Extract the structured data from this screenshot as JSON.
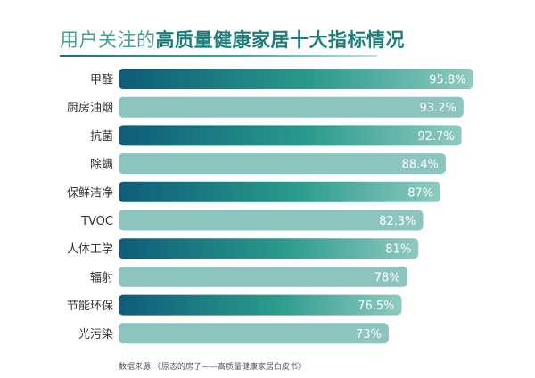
{
  "header": {
    "title_light": "用户关注的",
    "title_bold": "高质量健康家居十大指标情况"
  },
  "footer": {
    "source": "数据来源:《原态的房子——高质量健康家居白皮书》"
  },
  "colors": {
    "title_light": "#4a9e96",
    "title_bold": "#1d7d78",
    "bar_dark_start": "#0d5c79",
    "bar_dark_mid": "#2a9b8c",
    "bar_dark_end": "#8fcac0",
    "bar_light": "#8cc5c0",
    "value_text": "#ffffff",
    "category_text": "#333333"
  },
  "chart_data": {
    "type": "bar",
    "orientation": "horizontal",
    "title": "用户关注的高质量健康家居十大指标情况",
    "categories": [
      "甲醛",
      "厨房油烟",
      "抗菌",
      "除螨",
      "保鲜洁净",
      "TVOC",
      "人体工学",
      "辐射",
      "节能环保",
      "光污染"
    ],
    "values": [
      95.8,
      93.2,
      92.7,
      88.4,
      87,
      82.3,
      81,
      78,
      76.5,
      73
    ],
    "value_labels": [
      "95.8%",
      "93.2%",
      "92.7%",
      "88.4%",
      "87%",
      "82.3%",
      "81%",
      "78%",
      "76.5%",
      "73%"
    ],
    "unit": "%",
    "xlim": [
      0,
      100
    ],
    "grid": false,
    "legend": "none"
  }
}
